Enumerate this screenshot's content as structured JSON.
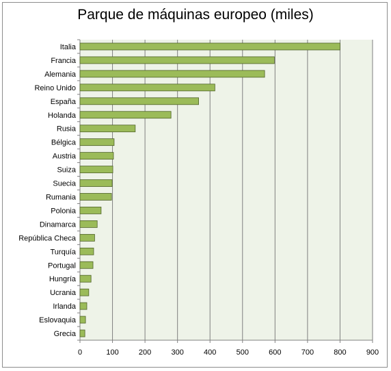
{
  "chart_data": {
    "type": "bar",
    "orientation": "horizontal",
    "title": "Parque de máquinas europeo (miles)",
    "categories": [
      "Italia",
      "Francia",
      "Alemania",
      "Reino Unido",
      "España",
      "Holanda",
      "Rusia",
      "Bélgica",
      "Austria",
      "Suiza",
      "Suecia",
      "Rumania",
      "Polonia",
      "Dinamarca",
      "República Checa",
      "Turquía",
      "Portugal",
      "Hungría",
      "Ucrania",
      "Irlanda",
      "Eslovaquia",
      "Grecia"
    ],
    "values": [
      800,
      598,
      568,
      415,
      365,
      280,
      170,
      105,
      103,
      101,
      99,
      97,
      65,
      53,
      45,
      42,
      40,
      34,
      27,
      21,
      17,
      15
    ],
    "xlim": [
      0,
      900
    ],
    "xticks": [
      0,
      100,
      200,
      300,
      400,
      500,
      600,
      700,
      800,
      900
    ],
    "grid": true,
    "legend": "none",
    "colors": {
      "bar_fill": "#9bbb59",
      "bar_stroke": "#4f6228",
      "plot_bg": "#eef3e8",
      "grid": "#7f7f7f"
    }
  }
}
